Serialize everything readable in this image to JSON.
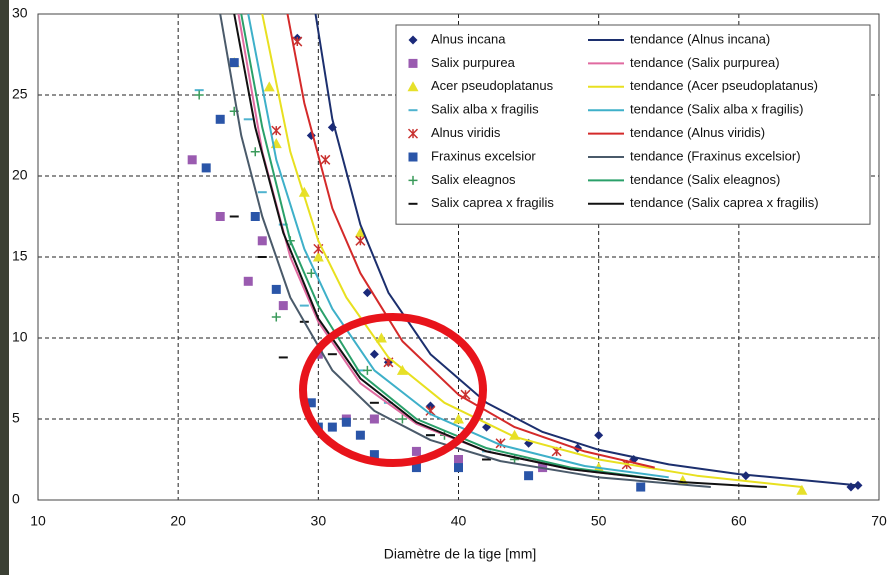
{
  "chart_data": {
    "type": "scatter",
    "x_label": "Diamètre de la tige [mm]",
    "xlim": [
      10,
      70
    ],
    "xticks": [
      10,
      20,
      30,
      40,
      50,
      60,
      70
    ],
    "ylim": [
      0,
      30
    ],
    "yticks": [
      0,
      5,
      10,
      15,
      20,
      25,
      30
    ],
    "grid": true,
    "legend": "upper right",
    "series": [
      {
        "name": "Alnus incana",
        "mode": "markers",
        "marker": "diamond",
        "color": "#1b2a7a",
        "x": [
          28.5,
          29.5,
          31,
          33.5,
          34,
          35,
          38,
          42,
          45,
          48.5,
          50,
          52.5,
          60.5,
          68,
          68.5
        ],
        "values": [
          28.5,
          22.5,
          23,
          12.8,
          9,
          8.5,
          5.8,
          4.5,
          3.5,
          3.2,
          4,
          2.5,
          1.5,
          0.8,
          0.9
        ]
      },
      {
        "name": "Salix purpurea",
        "mode": "markers",
        "marker": "square",
        "color": "#9a5bb0",
        "x": [
          21,
          23,
          25,
          26,
          27.5,
          30,
          32,
          34,
          37,
          40,
          46
        ],
        "values": [
          21,
          17.5,
          13.5,
          16,
          12,
          9,
          5,
          5,
          3,
          2.5,
          2
        ]
      },
      {
        "name": "Acer pseudoplatanus",
        "mode": "markers",
        "marker": "triangle",
        "color": "#e6e02a",
        "x": [
          24,
          26.5,
          27,
          29,
          30,
          33,
          34.5,
          36,
          40,
          44,
          50,
          56,
          64.5
        ],
        "values": [
          27,
          25.5,
          22,
          19,
          15,
          16.5,
          10,
          8,
          5,
          4,
          2,
          1.2,
          0.6
        ]
      },
      {
        "name": "Salix alba x fragilis",
        "mode": "markers",
        "marker": "dash",
        "color": "#4fb3cf",
        "x": [
          21.5,
          25,
          26,
          27.5,
          29,
          31,
          33,
          35,
          38,
          42
        ],
        "values": [
          25.3,
          23.5,
          19,
          17,
          12,
          10,
          8,
          6,
          4,
          3
        ]
      },
      {
        "name": "Alnus viridis",
        "mode": "markers",
        "marker": "asterisk",
        "color": "#c8312f",
        "x": [
          27,
          28.5,
          30,
          30.5,
          33,
          35,
          38,
          40.5,
          43,
          47,
          52
        ],
        "values": [
          22.8,
          28.3,
          15.5,
          21,
          16,
          8.5,
          5.5,
          6.5,
          3.5,
          3,
          2.2
        ]
      },
      {
        "name": "Fraxinus excelsior",
        "mode": "markers",
        "marker": "square",
        "color": "#2a55a8",
        "x": [
          22,
          23,
          24,
          25.5,
          27,
          29.5,
          30,
          31,
          32,
          33,
          34,
          37,
          40,
          45,
          53
        ],
        "values": [
          20.5,
          23.5,
          27,
          17.5,
          13,
          6,
          4.5,
          4.5,
          4.8,
          4,
          2.8,
          2,
          2,
          1.5,
          0.8
        ]
      },
      {
        "name": "Salix eleagnos",
        "mode": "markers",
        "marker": "plus",
        "color": "#3a9a5a",
        "x": [
          21.5,
          24,
          25.5,
          27,
          28,
          29.5,
          31,
          33.5,
          36,
          39,
          44
        ],
        "values": [
          25,
          24,
          21.5,
          11.3,
          16,
          14,
          10,
          8,
          5,
          4,
          2.5
        ]
      },
      {
        "name": "Salix caprea x fragilis",
        "mode": "markers",
        "marker": "dash",
        "color": "#111111",
        "x": [
          24,
          26,
          27.5,
          29,
          31,
          34,
          38,
          42
        ],
        "values": [
          17.5,
          15,
          8.8,
          11,
          9,
          6,
          4,
          2.5
        ]
      },
      {
        "name": "tendance (Alnus incana)",
        "mode": "line",
        "color": "#1c2f6e",
        "x": [
          29.8,
          31,
          33,
          35,
          38,
          42,
          46,
          50,
          55,
          60,
          68.5
        ],
        "values": [
          30,
          23.5,
          17,
          12.8,
          9,
          6,
          4.2,
          3.1,
          2.2,
          1.6,
          0.9
        ]
      },
      {
        "name": "tendance (Salix purpurea)",
        "mode": "line",
        "color": "#e06aa0",
        "x": [
          24.3,
          26,
          28,
          30,
          33,
          37,
          42,
          48,
          54
        ],
        "values": [
          30,
          21.5,
          15,
          11,
          7.2,
          4.7,
          3,
          1.9,
          1.3
        ]
      },
      {
        "name": "tendance (Acer pseudoplatanus)",
        "mode": "line",
        "color": "#e8e020",
        "x": [
          26,
          28,
          30,
          32,
          35,
          39,
          44,
          50,
          57,
          64.5
        ],
        "values": [
          30,
          21.5,
          16,
          12.5,
          8.8,
          6,
          3.9,
          2.5,
          1.5,
          0.8
        ]
      },
      {
        "name": "tendance (Salix alba x fragilis)",
        "mode": "line",
        "color": "#3eb0c9",
        "x": [
          25,
          27,
          29,
          31,
          34,
          38,
          43,
          49,
          55
        ],
        "values": [
          30,
          21,
          15.5,
          11.8,
          8,
          5.3,
          3.4,
          2.1,
          1.4
        ]
      },
      {
        "name": "tendance (Alnus viridis)",
        "mode": "line",
        "color": "#d42a2a",
        "x": [
          27.8,
          29,
          31,
          33,
          36,
          40,
          44,
          49,
          54
        ],
        "values": [
          30,
          24.5,
          18,
          14,
          9.8,
          6.5,
          4.5,
          3,
          2
        ]
      },
      {
        "name": "tendance (Fraxinus excelsior)",
        "mode": "line",
        "color": "#4a5a6a",
        "x": [
          23,
          24.5,
          26,
          28,
          31,
          34,
          38,
          43,
          50,
          58
        ],
        "values": [
          30,
          22.5,
          17.5,
          12.5,
          8,
          5.5,
          3.7,
          2.4,
          1.4,
          0.8
        ]
      },
      {
        "name": "tendance (Salix eleagnos)",
        "mode": "line",
        "color": "#2aa06a",
        "x": [
          24.5,
          26,
          28,
          30,
          33,
          37,
          42,
          48,
          55
        ],
        "values": [
          30,
          23,
          16,
          12,
          7.8,
          5,
          3.2,
          2,
          1.2
        ]
      },
      {
        "name": "tendance (Salix caprea x fragilis)",
        "mode": "line",
        "color": "#111111",
        "x": [
          24,
          25.5,
          27.5,
          30,
          33,
          37,
          42,
          48,
          56,
          62
        ],
        "values": [
          30,
          23,
          16.5,
          11.2,
          7.5,
          4.8,
          3,
          1.9,
          1.1,
          0.8
        ]
      }
    ]
  }
}
